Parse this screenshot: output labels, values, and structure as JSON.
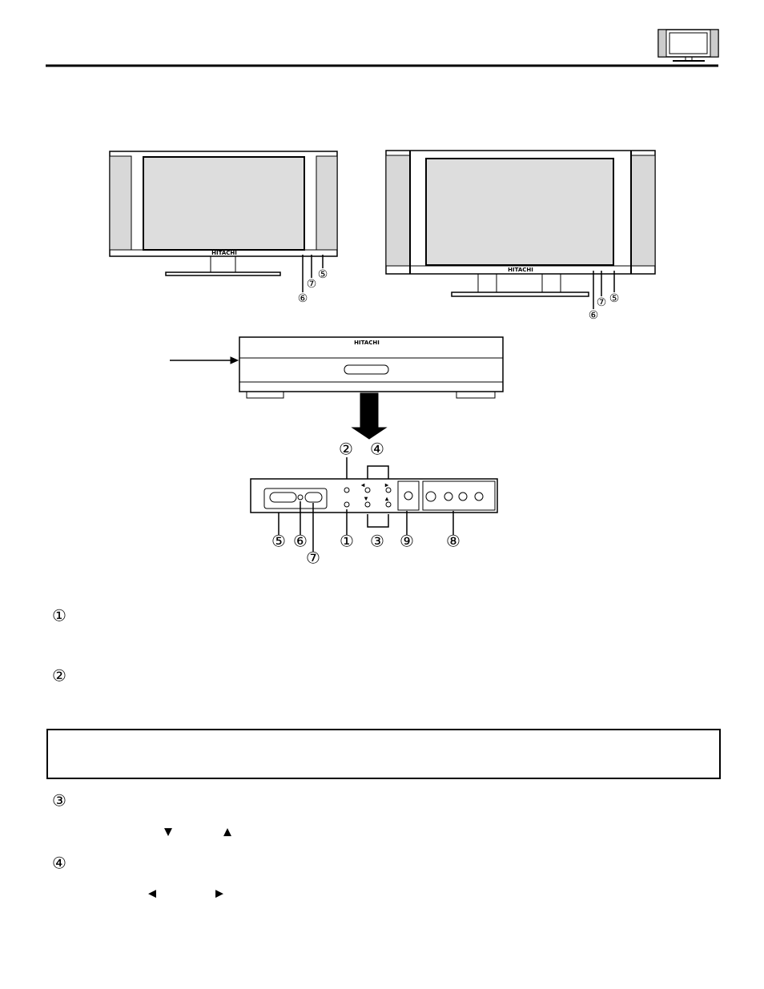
{
  "diagram": {
    "brand_labels": [
      "HITACHI",
      "HITACHI",
      "HITACHI"
    ],
    "left_tv_callouts": [
      "⑤",
      "⑦",
      "⑥"
    ],
    "right_tv_callouts": [
      "⑤",
      "⑦",
      "⑥"
    ],
    "panel_top_callouts": [
      "②",
      "④"
    ],
    "panel_bottom_callouts": [
      "⑤",
      "⑥",
      "⑦",
      "①",
      "③",
      "⑨",
      "⑧"
    ],
    "panel_button_symbols": [
      "◀",
      "▶",
      "▼",
      "▲"
    ]
  },
  "items": [
    {
      "marker": "①"
    },
    {
      "marker": "②"
    },
    {
      "marker": "③",
      "symbols": [
        "▼",
        "▲"
      ]
    },
    {
      "marker": "④",
      "symbols": [
        "◀",
        "▶"
      ]
    }
  ]
}
